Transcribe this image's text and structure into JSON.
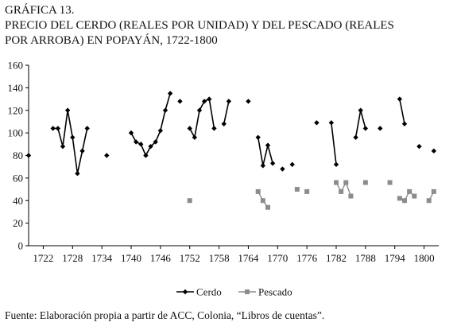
{
  "chart_data": {
    "type": "line",
    "title_lines": [
      "GRÁFICA 13.",
      "PRECIO DEL CERDO (REALES POR UNIDAD) Y DEL PESCADO (REALES",
      "POR ARROBA) EN POPAYÁN, 1722-1800"
    ],
    "xlabel": "",
    "ylabel": "",
    "xlim": [
      1719,
      1803
    ],
    "ylim": [
      0,
      160
    ],
    "yticks": [
      0,
      20,
      40,
      60,
      80,
      100,
      120,
      140,
      160
    ],
    "xticks": [
      1722,
      1728,
      1734,
      1740,
      1746,
      1752,
      1758,
      1764,
      1770,
      1776,
      1782,
      1788,
      1794,
      1800
    ],
    "grid": false,
    "legend_position": "bottom-center",
    "series": [
      {
        "name": "Cerdo",
        "color": "#000000",
        "marker": "diamond",
        "segments": [
          [
            [
              1719,
              80
            ]
          ],
          [
            [
              1724,
              104
            ],
            [
              1725,
              104
            ],
            [
              1726,
              88
            ],
            [
              1727,
              120
            ],
            [
              1728,
              96
            ],
            [
              1729,
              64
            ],
            [
              1730,
              84
            ],
            [
              1731,
              104
            ]
          ],
          [
            [
              1735,
              80
            ]
          ],
          [
            [
              1740,
              100
            ],
            [
              1741,
              92
            ],
            [
              1742,
              90
            ],
            [
              1743,
              80
            ],
            [
              1744,
              88
            ],
            [
              1745,
              92
            ],
            [
              1746,
              102
            ],
            [
              1747,
              120
            ],
            [
              1748,
              135
            ]
          ],
          [
            [
              1750,
              128
            ]
          ],
          [
            [
              1752,
              104
            ],
            [
              1753,
              96
            ],
            [
              1754,
              120
            ],
            [
              1755,
              128
            ],
            [
              1756,
              130
            ],
            [
              1757,
              104
            ]
          ],
          [
            [
              1759,
              108
            ],
            [
              1760,
              128
            ]
          ],
          [
            [
              1764,
              128
            ]
          ],
          [
            [
              1766,
              96
            ],
            [
              1767,
              71
            ],
            [
              1768,
              89
            ],
            [
              1769,
              73
            ]
          ],
          [
            [
              1771,
              68
            ]
          ],
          [
            [
              1773,
              72
            ]
          ],
          [
            [
              1778,
              109
            ]
          ],
          [
            [
              1781,
              109
            ],
            [
              1782,
              72
            ]
          ],
          [
            [
              1786,
              96
            ],
            [
              1787,
              120
            ],
            [
              1788,
              104
            ]
          ],
          [
            [
              1791,
              104
            ]
          ],
          [
            [
              1795,
              130
            ],
            [
              1796,
              108
            ]
          ],
          [
            [
              1799,
              88
            ]
          ],
          [
            [
              1802,
              84
            ]
          ]
        ]
      },
      {
        "name": "Pescado",
        "color": "#8c8c8c",
        "marker": "square",
        "segments": [
          [
            [
              1752,
              40
            ]
          ],
          [
            [
              1766,
              48
            ],
            [
              1767,
              40
            ],
            [
              1768,
              34
            ]
          ],
          [
            [
              1774,
              50
            ]
          ],
          [
            [
              1776,
              48
            ]
          ],
          [
            [
              1782,
              56
            ],
            [
              1783,
              48
            ],
            [
              1784,
              56
            ],
            [
              1785,
              44
            ]
          ],
          [
            [
              1788,
              56
            ]
          ],
          [
            [
              1793,
              56
            ]
          ],
          [
            [
              1795,
              42
            ],
            [
              1796,
              40
            ],
            [
              1797,
              48
            ],
            [
              1798,
              44
            ]
          ],
          [
            [
              1801,
              40
            ],
            [
              1802,
              48
            ]
          ]
        ]
      }
    ]
  },
  "source": "Fuente: Elaboración propia a partir de ACC, Colonia, “Libros de cuentas”."
}
